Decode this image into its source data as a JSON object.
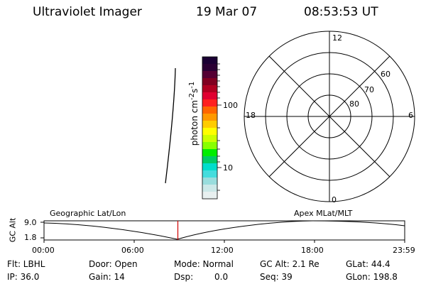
{
  "header": {
    "instrument": "Ultraviolet Imager",
    "date": "19 Mar 07",
    "time": "08:53:53 UT"
  },
  "colorbar": {
    "unit_label_html": "photon cm<sup>-2</sup>s<sup>-1</sup>",
    "ticks": [
      "100",
      "10"
    ],
    "colors": [
      "#1a0033",
      "#2a0033",
      "#550033",
      "#800020",
      "#b00020",
      "#e00030",
      "#ff2020",
      "#ff6600",
      "#ff9900",
      "#ffcc00",
      "#ffff00",
      "#ccff00",
      "#88ff00",
      "#00ee00",
      "#00cc66",
      "#00ddcc",
      "#44dddd",
      "#99dddd",
      "#cce8e8",
      "#e8f0f0"
    ]
  },
  "polar": {
    "mlt_labels": {
      "top": "12",
      "left": "18",
      "right": "6",
      "bottom": "0"
    },
    "lat_labels": [
      "60",
      "70",
      "80"
    ]
  },
  "altitude_plot": {
    "axis_title": "GC Alt",
    "y_labels": [
      "9.0",
      "1.8"
    ],
    "left_label": "Geographic Lat/Lon",
    "right_label": "Apex MLat/MLT",
    "x_labels": [
      "00:00",
      "06:00",
      "12:00",
      "18:00",
      "23:59"
    ],
    "current_time_fraction": 0.371
  },
  "info": {
    "flt": "Flt: LBHL",
    "ip": "IP: 36.0",
    "door": "Door: Open",
    "gain": "Gain: 14",
    "mode": "Mode: Normal",
    "dsp_label": "Dsp:",
    "dsp_value": "0.0",
    "gc_alt": "GC Alt: 2.1 Re",
    "seq": "Seq: 39",
    "glat": "GLat: 44.4",
    "glon": "GLon: 198.8"
  }
}
